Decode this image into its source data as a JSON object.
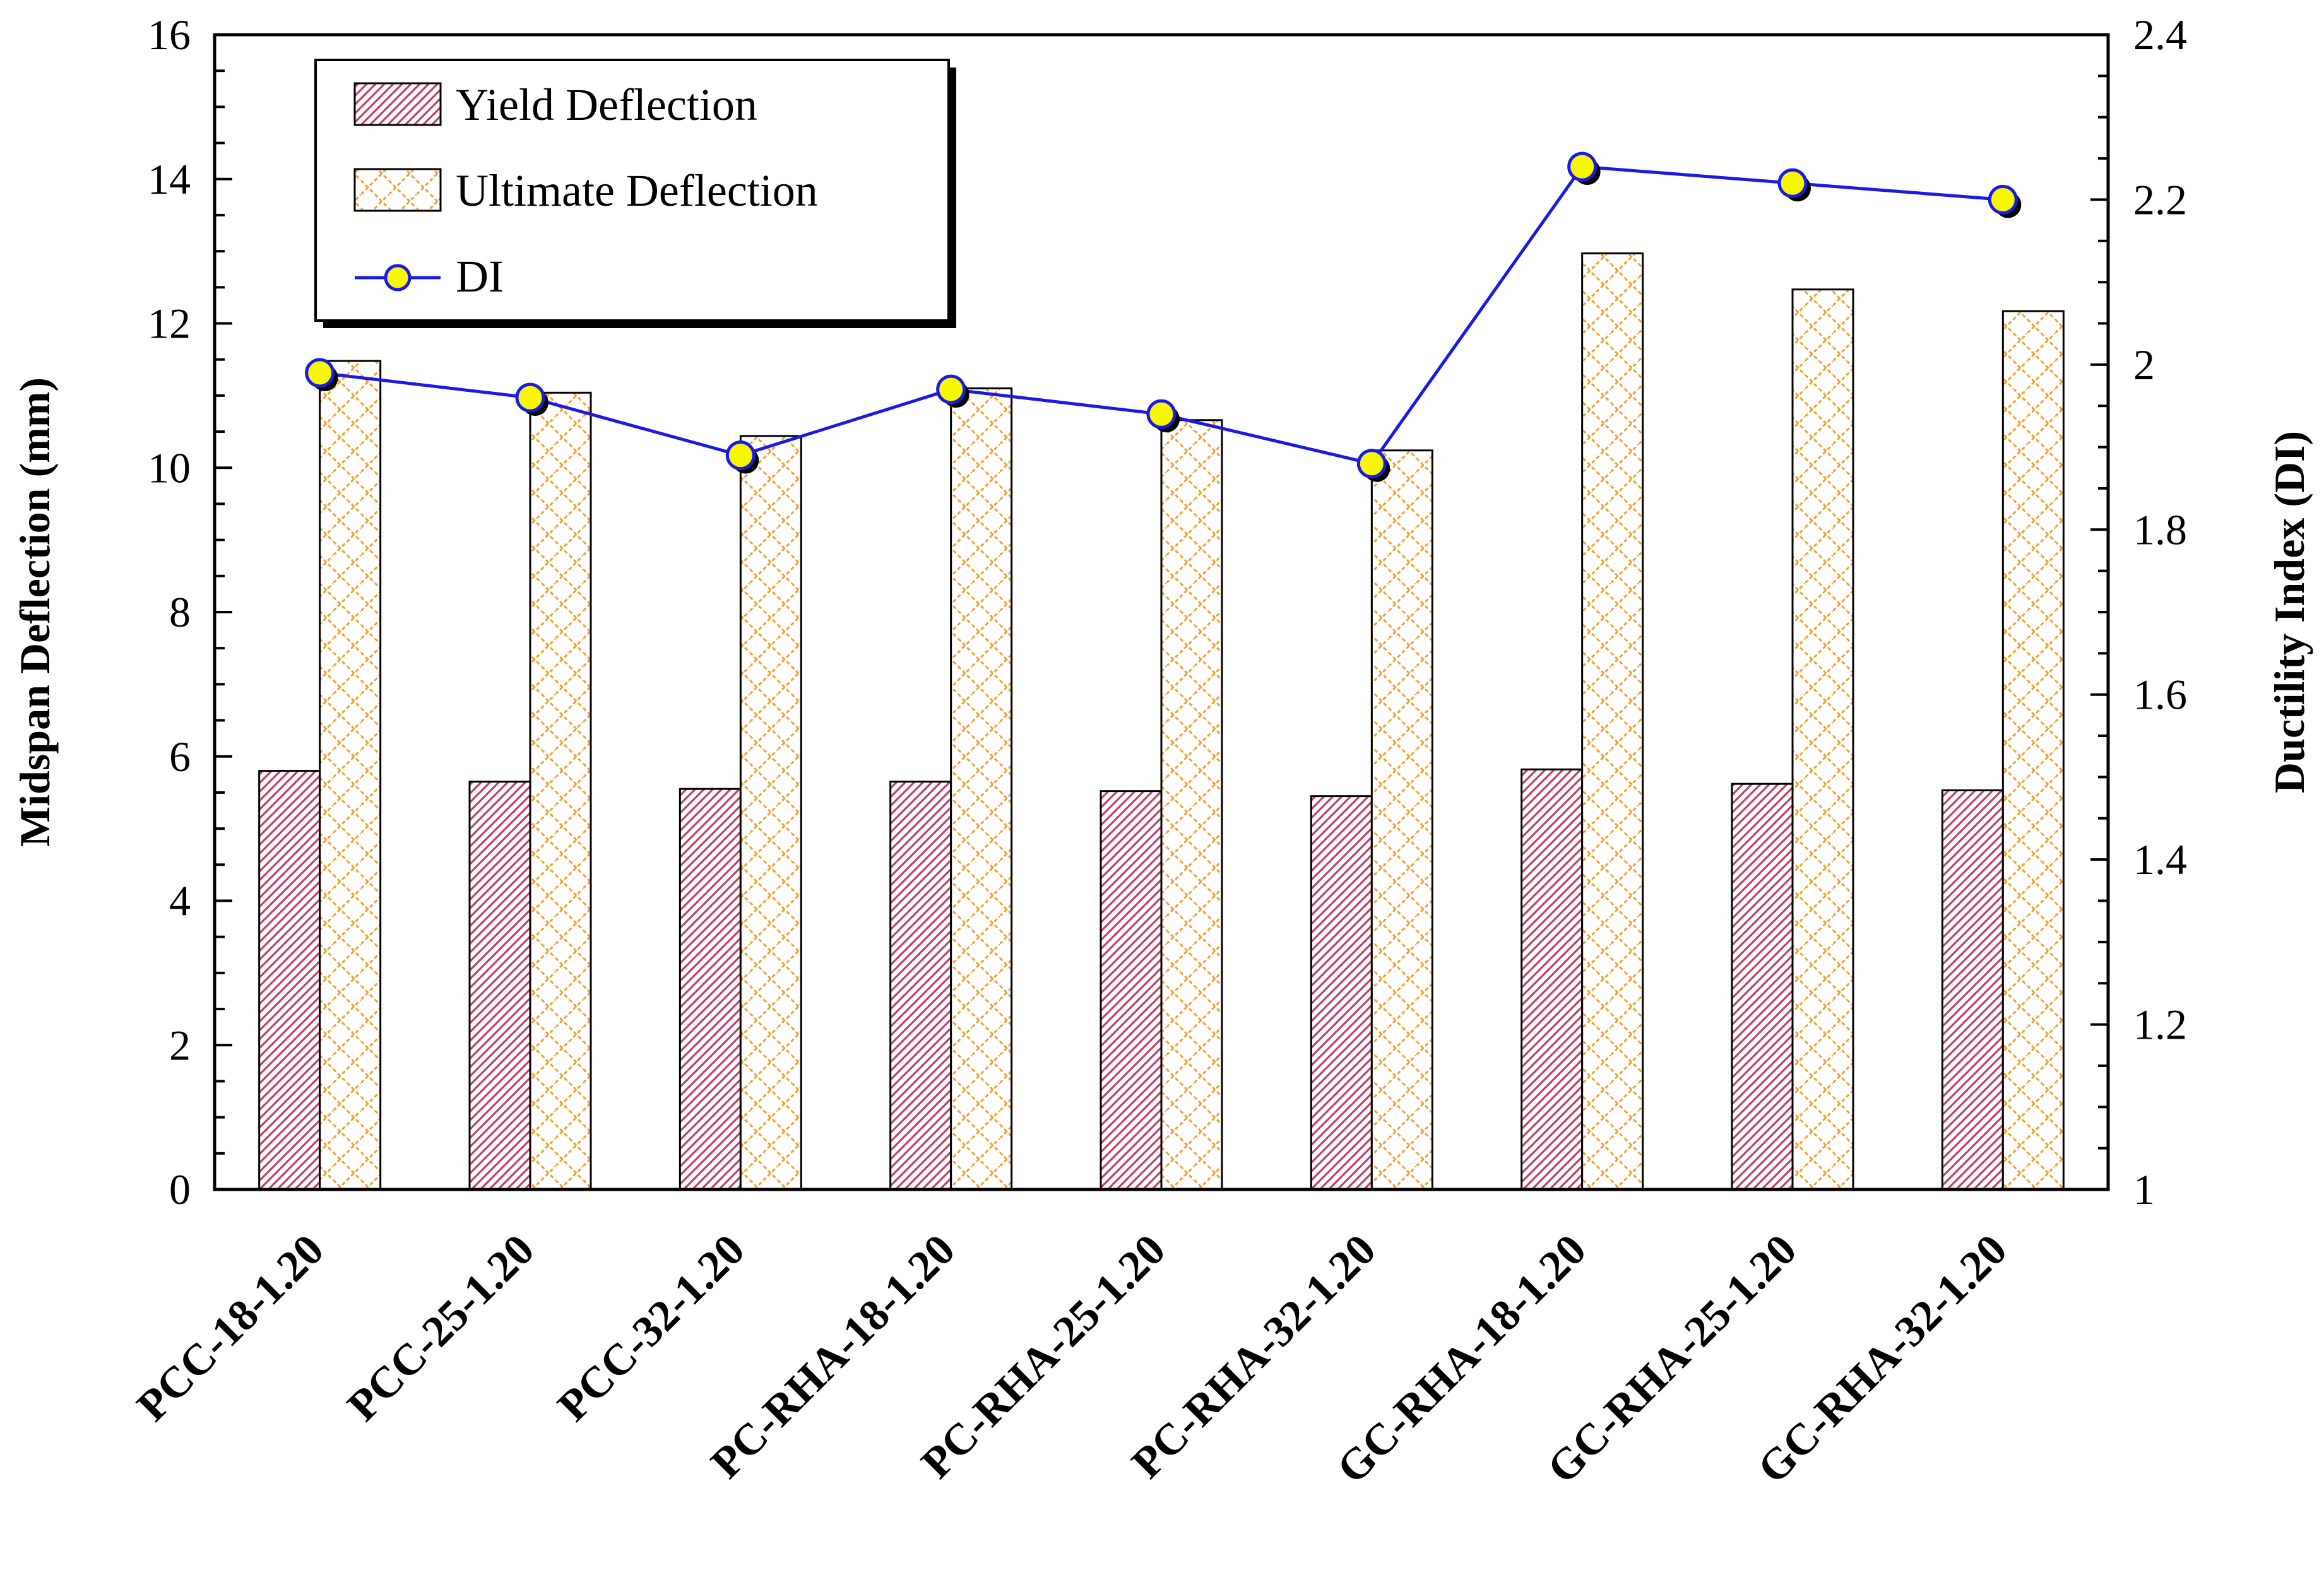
{
  "chart_data": {
    "type": "bar",
    "categories": [
      "PCC-18-1.20",
      "PCC-25-1.20",
      "PCC-32-1.20",
      "PC-RHA-18-1.20",
      "PC-RHA-25-1.20",
      "PC-RHA-32-1.20",
      "GC-RHA-18-1.20",
      "GC-RHA-25-1.20",
      "GC-RHA-32-1.20"
    ],
    "series": [
      {
        "name": "Yield Deflection",
        "axis": "left",
        "style": "bar",
        "values": [
          5.8,
          5.65,
          5.55,
          5.65,
          5.52,
          5.45,
          5.82,
          5.62,
          5.53
        ]
      },
      {
        "name": "Ultimate Deflection",
        "axis": "left",
        "style": "bar",
        "values": [
          11.48,
          11.04,
          10.44,
          11.1,
          10.66,
          10.24,
          12.97,
          12.47,
          12.17
        ]
      },
      {
        "name": "DI",
        "axis": "right",
        "style": "line-marker",
        "values": [
          1.99,
          1.96,
          1.89,
          1.97,
          1.94,
          1.88,
          2.24,
          2.22,
          2.2
        ]
      }
    ],
    "ylabel": "Midspan Deflection (mm)",
    "y2label": "Ductility Index (DI)",
    "ylim": [
      0,
      16
    ],
    "yticks": [
      "0",
      "2",
      "4",
      "6",
      "8",
      "10",
      "12",
      "14",
      "16"
    ],
    "y2lim": [
      1,
      2.4
    ],
    "y2ticks": [
      "1",
      "1.2",
      "1.4",
      "1.6",
      "1.8",
      "2",
      "2.2",
      "2.4"
    ],
    "legend_position": "top-left",
    "grid": false,
    "colors": {
      "yield_hatch": "#c0406e",
      "ultimate_hatch": "#f0a030",
      "di_line": "#1a1ae6",
      "di_marker_fill": "#f7f700",
      "di_marker_edge": "#1a1ae6",
      "axis": "#000000"
    }
  }
}
